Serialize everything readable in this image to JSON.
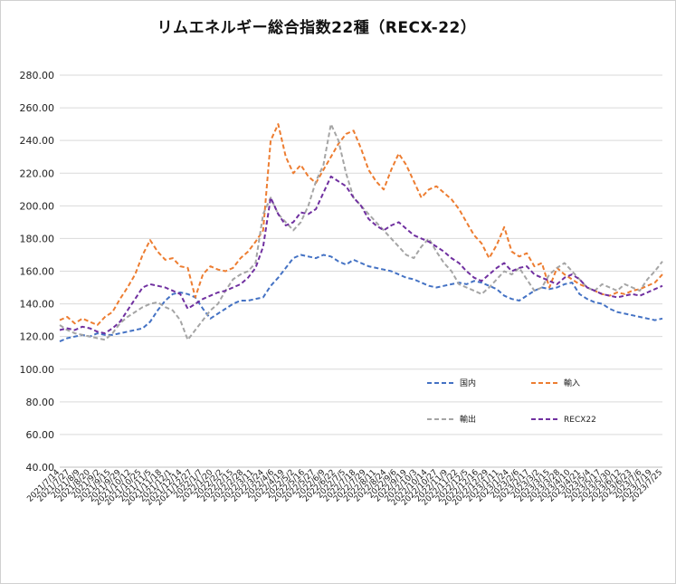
{
  "chart_data": {
    "type": "line",
    "title": "リムエネルギー総合指数22種（RECX-22）",
    "xlabel": "",
    "ylabel": "",
    "ylim": [
      40,
      280
    ],
    "yticks": [
      "40.00",
      "60.00",
      "80.00",
      "100.00",
      "120.00",
      "140.00",
      "160.00",
      "180.00",
      "200.00",
      "220.00",
      "240.00",
      "260.00",
      "280.00"
    ],
    "grid": true,
    "legend_position": "lower-right",
    "x_ticks": [
      "2021/7/14",
      "2021/7/27",
      "2021/8/9",
      "2021/8/20",
      "2021/9/2",
      "2021/9/15",
      "2021/9/29",
      "2021/10/12",
      "2021/10/25",
      "2021/11/5",
      "2021/11/18",
      "2021/12/1",
      "2021/12/14",
      "2021/12/27",
      "2022/1/7",
      "2022/1/20",
      "2022/2/2",
      "2022/2/15",
      "2022/2/28",
      "2022/3/11",
      "2022/3/24",
      "2022/4/6",
      "2022/4/19",
      "2022/5/2",
      "2022/5/16",
      "2022/5/27",
      "2022/6/9",
      "2022/6/22",
      "2022/7/5",
      "2022/7/18",
      "2022/7/29",
      "2022/8/11",
      "2022/8/24",
      "2022/9/6",
      "2022/9/19",
      "2022/10/3",
      "2022/10/14",
      "2022/10/27",
      "2022/11/9",
      "2022/11/22",
      "2022/12/5",
      "2022/12/16",
      "2022/12/29",
      "2023/1/11",
      "2023/1/24",
      "2023/2/6",
      "2023/2/17",
      "2023/3/2",
      "2023/3/15",
      "2023/3/28",
      "2023/4/10",
      "2023/4/21",
      "2023/5/4",
      "2023/5/17",
      "2023/5/30",
      "2023/6/12",
      "2023/6/23",
      "2023/7/6",
      "2023/7/19",
      "2023/7/25"
    ],
    "series": [
      {
        "name": "国内",
        "color": "#4472C4",
        "values": [
          117,
          119,
          120,
          121,
          120,
          122,
          121,
          121,
          122,
          123,
          124,
          125,
          129,
          136,
          142,
          146,
          147,
          146,
          144,
          137,
          131,
          134,
          137,
          140,
          142,
          142,
          143,
          144,
          151,
          156,
          162,
          168,
          170,
          169,
          168,
          170,
          169,
          166,
          164,
          167,
          165,
          163,
          162,
          161,
          160,
          158,
          156,
          155,
          153,
          151,
          150,
          151,
          152,
          153,
          152,
          154,
          153,
          151,
          149,
          145,
          143,
          142,
          145,
          148,
          150,
          149,
          150,
          152,
          153,
          146,
          143,
          141,
          140,
          137,
          135,
          134,
          133,
          132,
          131,
          130,
          131
        ]
      },
      {
        "name": "輸入",
        "color": "#ED7D31",
        "values": [
          130,
          132,
          128,
          131,
          129,
          127,
          132,
          135,
          143,
          150,
          158,
          170,
          179,
          172,
          167,
          168,
          163,
          162,
          144,
          158,
          163,
          161,
          160,
          162,
          168,
          172,
          178,
          185,
          240,
          250,
          230,
          220,
          225,
          218,
          214,
          222,
          230,
          238,
          244,
          246,
          235,
          222,
          215,
          210,
          222,
          232,
          225,
          215,
          205,
          210,
          212,
          208,
          204,
          198,
          190,
          182,
          177,
          168,
          176,
          187,
          172,
          169,
          171,
          163,
          165,
          150,
          162,
          158,
          155,
          152,
          150,
          148,
          146,
          145,
          147,
          146,
          148,
          149,
          151,
          153,
          158
        ]
      },
      {
        "name": "輸出",
        "color": "#A5A5A5",
        "values": [
          127,
          124,
          122,
          121,
          120,
          119,
          118,
          122,
          128,
          132,
          135,
          138,
          140,
          141,
          138,
          136,
          130,
          118,
          124,
          130,
          136,
          140,
          148,
          155,
          158,
          160,
          165,
          195,
          205,
          195,
          190,
          185,
          190,
          200,
          215,
          225,
          250,
          240,
          220,
          205,
          200,
          195,
          190,
          185,
          180,
          175,
          170,
          168,
          175,
          180,
          172,
          165,
          160,
          152,
          150,
          148,
          146,
          150,
          155,
          160,
          158,
          162,
          155,
          148,
          150,
          158,
          162,
          165,
          160,
          155,
          150,
          148,
          152,
          150,
          148,
          152,
          150,
          148,
          155,
          160,
          166
        ]
      },
      {
        "name": "RECX22",
        "color": "#7030A0",
        "values": [
          124,
          125,
          124,
          126,
          125,
          123,
          122,
          125,
          129,
          136,
          143,
          150,
          152,
          151,
          150,
          148,
          146,
          137,
          140,
          143,
          145,
          147,
          148,
          150,
          152,
          156,
          162,
          175,
          205,
          195,
          188,
          190,
          196,
          195,
          198,
          208,
          218,
          215,
          212,
          205,
          200,
          192,
          188,
          185,
          188,
          190,
          186,
          182,
          180,
          178,
          175,
          172,
          168,
          165,
          160,
          156,
          154,
          158,
          162,
          165,
          160,
          162,
          163,
          158,
          156,
          154,
          152,
          156,
          158,
          155,
          150,
          148,
          146,
          145,
          144,
          145,
          146,
          145,
          147,
          149,
          151
        ]
      }
    ]
  }
}
